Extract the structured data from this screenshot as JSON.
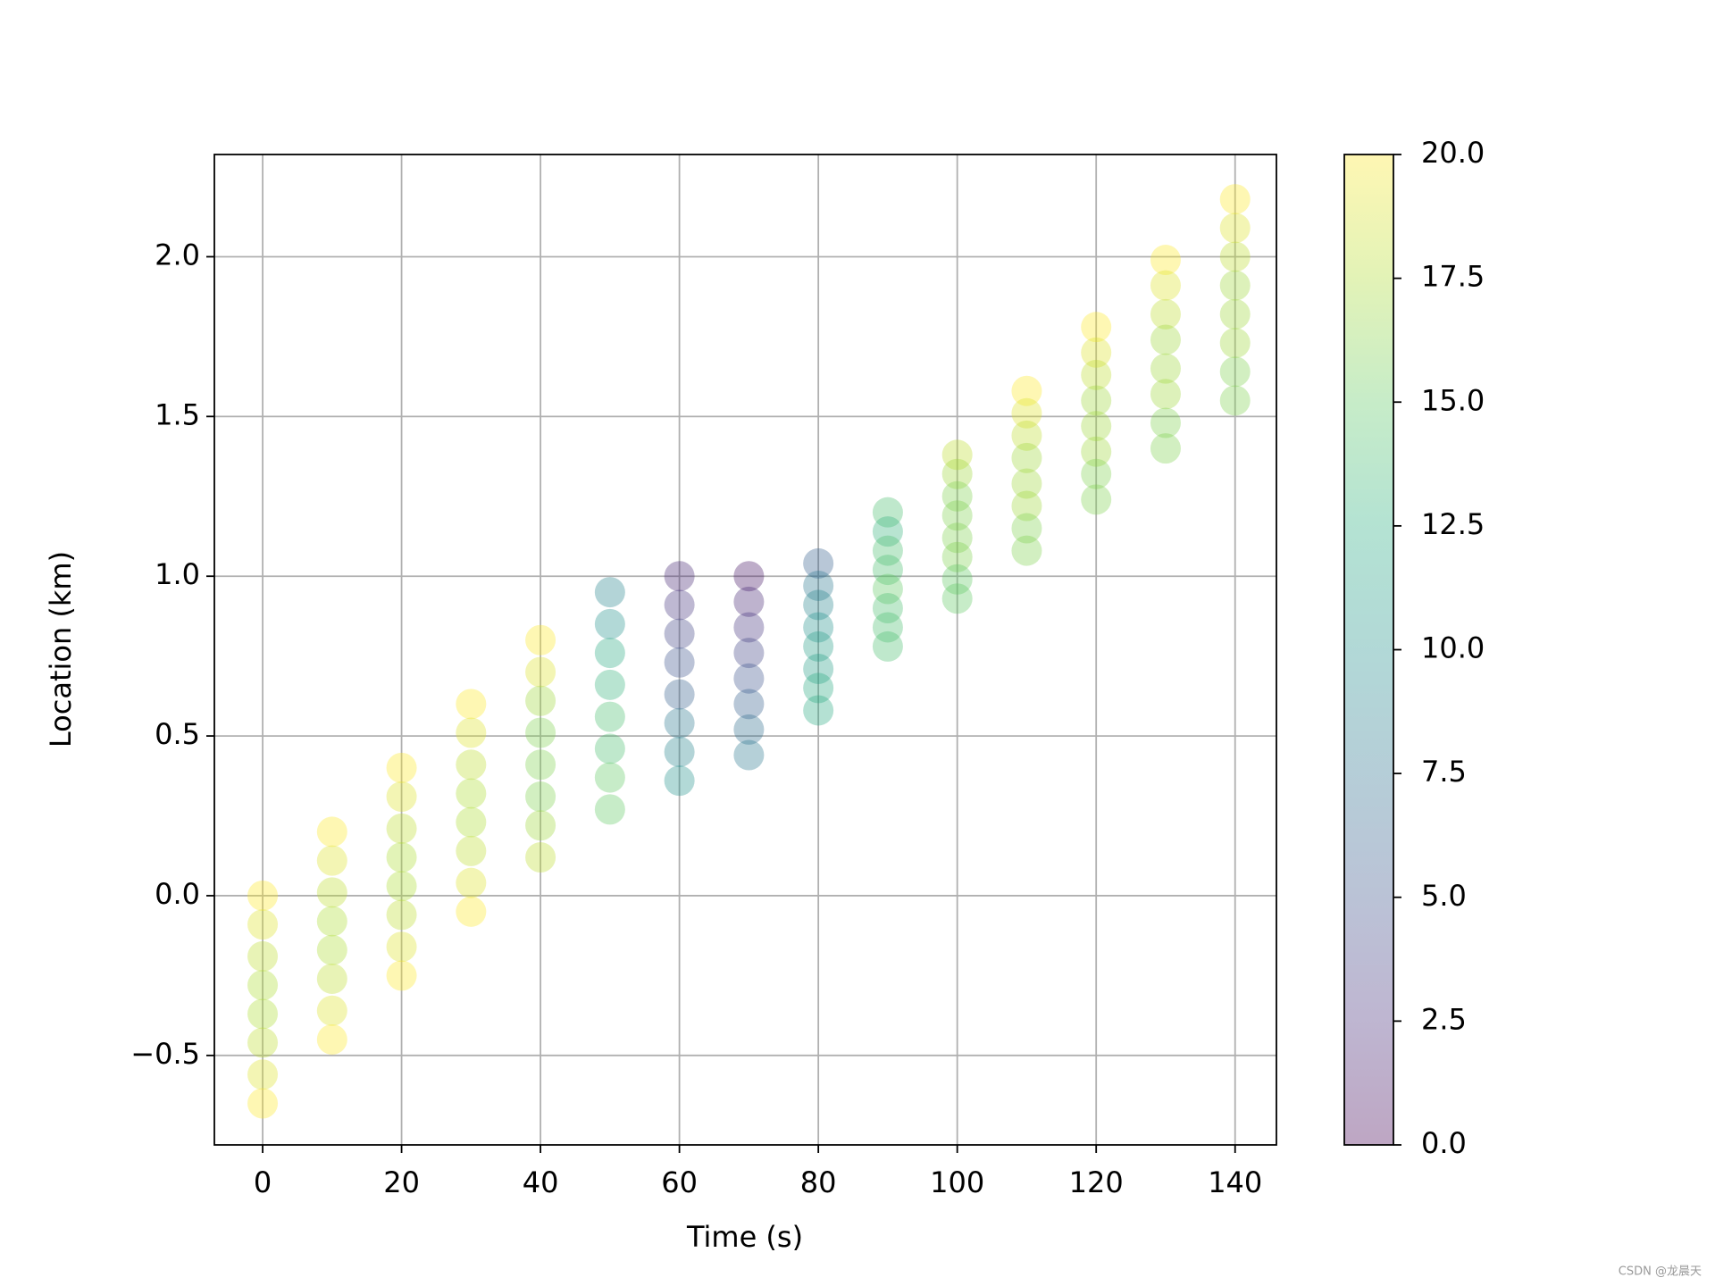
{
  "chart_data": {
    "type": "scatter",
    "x_label": "Time (s)",
    "y_label": "Location (km)",
    "x": [
      0,
      10,
      20,
      30,
      40,
      50,
      60,
      70,
      80,
      90,
      100,
      110,
      120,
      130,
      140
    ],
    "series": [
      {
        "values": [
          0,
          0.2,
          0.4,
          0.6,
          0.8,
          0.95,
          1.0,
          1.0,
          1.04,
          1.2,
          1.38,
          1.58,
          1.78,
          1.99,
          2.18
        ],
        "c": [
          20,
          20,
          20,
          20,
          20,
          9,
          2,
          1,
          6,
          14,
          18,
          20,
          20,
          20,
          20
        ]
      },
      {
        "values": [
          -0.09,
          0.11,
          0.31,
          0.51,
          0.7,
          0.85,
          0.91,
          0.92,
          0.97,
          1.14,
          1.32,
          1.51,
          1.7,
          1.91,
          2.09
        ],
        "c": [
          19,
          19,
          19,
          19,
          19,
          10,
          3,
          2,
          8,
          13,
          17,
          19,
          19,
          19,
          19
        ]
      },
      {
        "values": [
          -0.19,
          0.01,
          0.21,
          0.41,
          0.61,
          0.76,
          0.82,
          0.84,
          0.91,
          1.08,
          1.25,
          1.44,
          1.63,
          1.82,
          2.0
        ],
        "c": [
          18,
          18,
          18,
          18,
          17,
          12,
          4,
          3,
          9,
          14,
          16,
          18,
          18,
          18,
          18
        ]
      },
      {
        "values": [
          -0.28,
          -0.08,
          0.12,
          0.32,
          0.51,
          0.66,
          0.73,
          0.76,
          0.84,
          1.02,
          1.19,
          1.37,
          1.55,
          1.74,
          1.91
        ],
        "c": [
          17.5,
          17.5,
          17.5,
          17.5,
          16,
          13,
          5,
          4,
          10,
          14,
          16,
          17,
          17,
          17,
          17
        ]
      },
      {
        "values": [
          -0.37,
          -0.17,
          0.03,
          0.23,
          0.41,
          0.56,
          0.63,
          0.68,
          0.78,
          0.96,
          1.12,
          1.29,
          1.47,
          1.65,
          1.82
        ],
        "c": [
          17.5,
          17.5,
          17.5,
          17.5,
          16,
          14,
          6,
          5,
          11,
          15,
          16,
          17,
          17,
          17,
          17
        ]
      },
      {
        "values": [
          -0.46,
          -0.26,
          -0.06,
          0.14,
          0.31,
          0.46,
          0.54,
          0.6,
          0.71,
          0.9,
          1.06,
          1.22,
          1.39,
          1.57,
          1.73
        ],
        "c": [
          18,
          18,
          18,
          18,
          16,
          14,
          8,
          6,
          11,
          14,
          16,
          17,
          17,
          17,
          17
        ]
      },
      {
        "values": [
          -0.56,
          -0.36,
          -0.16,
          0.04,
          0.22,
          0.37,
          0.45,
          0.52,
          0.65,
          0.84,
          0.99,
          1.15,
          1.32,
          1.48,
          1.64
        ],
        "c": [
          19,
          19,
          19,
          19,
          17,
          15,
          9,
          7,
          12,
          14,
          15,
          16,
          16,
          16,
          16
        ]
      },
      {
        "values": [
          -0.65,
          -0.45,
          -0.25,
          -0.05,
          0.12,
          0.27,
          0.36,
          0.44,
          0.58,
          0.78,
          0.93,
          1.08,
          1.24,
          1.4,
          1.55
        ],
        "c": [
          20,
          20,
          20,
          20,
          18,
          15,
          10,
          8,
          12,
          14,
          15,
          16,
          16,
          16,
          16
        ]
      }
    ],
    "colormap": "viridis",
    "alpha": 0.35,
    "xlim": [
      -6.95,
      145.95
    ],
    "xticks": [
      0,
      20,
      40,
      60,
      80,
      100,
      120,
      140
    ],
    "ylim": [
      -0.78,
      2.32
    ],
    "yticks": [
      {
        "value": -0.5,
        "label": "−0.5"
      },
      {
        "value": 0,
        "label": "0.0"
      },
      {
        "value": 0.5,
        "label": "0.5"
      },
      {
        "value": 1,
        "label": "1.0"
      },
      {
        "value": 1.5,
        "label": "1.5"
      },
      {
        "value": 2,
        "label": "2.0"
      }
    ],
    "clim": [
      0,
      20
    ],
    "cticks": [
      {
        "value": 0,
        "label": "0.0"
      },
      {
        "value": 2.5,
        "label": "2.5"
      },
      {
        "value": 5,
        "label": "5.0"
      },
      {
        "value": 7.5,
        "label": "7.5"
      },
      {
        "value": 10,
        "label": "10.0"
      },
      {
        "value": 12.5,
        "label": "12.5"
      },
      {
        "value": 15,
        "label": "15.0"
      },
      {
        "value": 17.5,
        "label": "17.5"
      },
      {
        "value": 20,
        "label": "20.0"
      }
    ],
    "grid": true
  },
  "watermark": "CSDN @龙晨天"
}
